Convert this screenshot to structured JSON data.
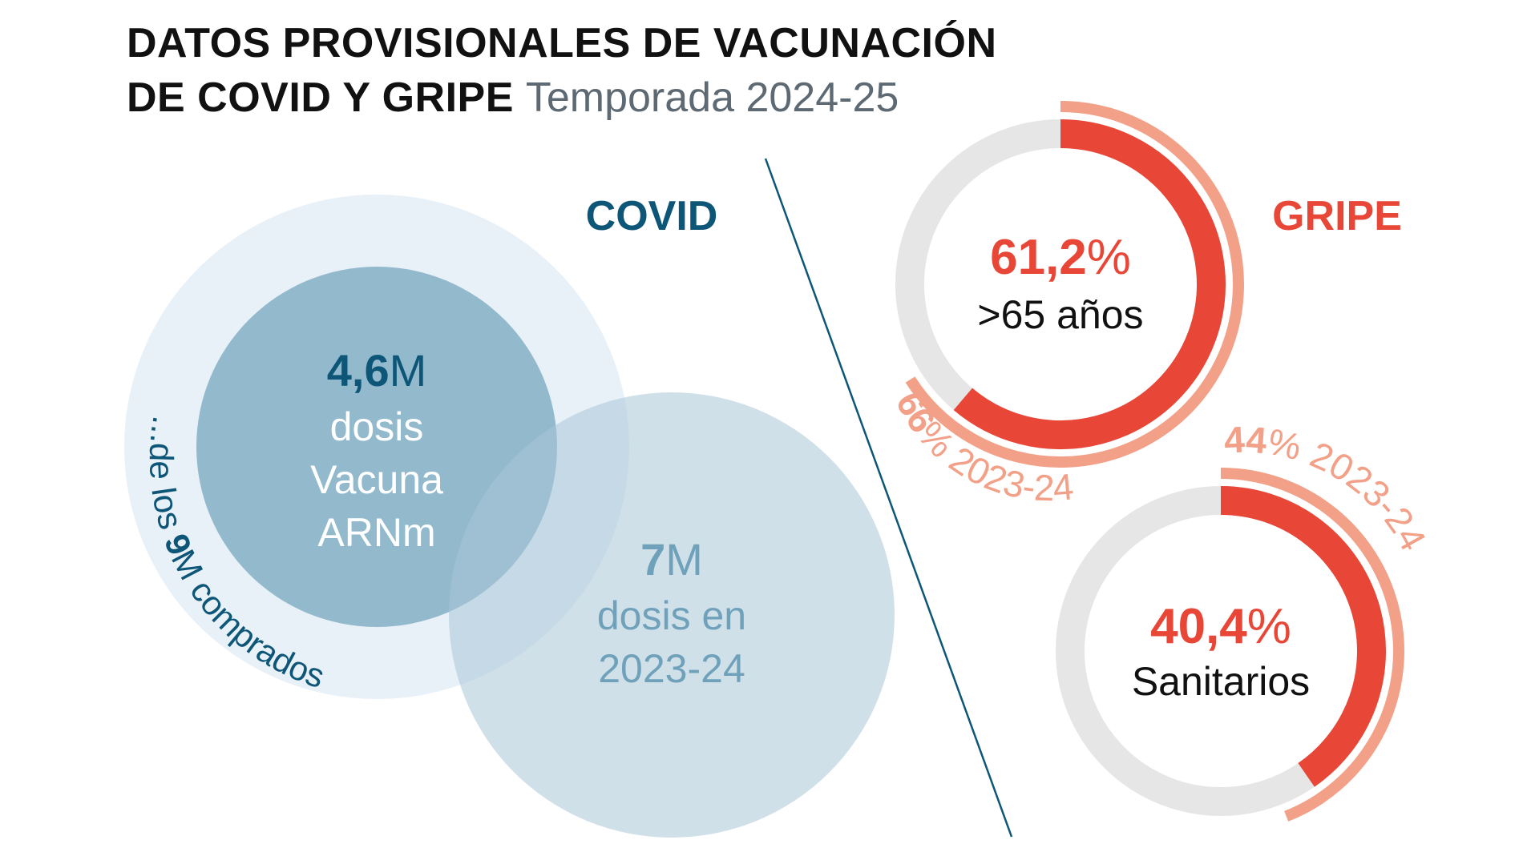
{
  "title": {
    "line1": "DATOS PROVISIONALES DE VACUNACIÓN",
    "line2": "DE COVID Y GRIPE",
    "subtitle": "Temporada 2024-25"
  },
  "colors": {
    "covid_dark": "#0e5677",
    "covid_mid": "#6fa1ba",
    "covid_light": "#a9c6d7",
    "covid_outer": "#e8f0f8",
    "gripe_red": "#e84636",
    "gripe_prev": "#f2a087",
    "ring_grey": "#e6e6e6",
    "divider": "#0e5677"
  },
  "chart_data": [
    {
      "type": "bubble",
      "section_label": "COVID",
      "bubbles": [
        {
          "key": "purchased",
          "value": 9,
          "value_text": "9",
          "unit": "M",
          "label_prefix": "...de los ",
          "label_suffix": " comprados"
        },
        {
          "key": "current",
          "value": 4.6,
          "value_text": "4,6",
          "unit": "M",
          "label_lines": [
            "dosis",
            "Vacuna",
            "ARNm"
          ]
        },
        {
          "key": "previous",
          "value": 7,
          "value_text": "7",
          "unit": "M",
          "label_lines": [
            "dosis en",
            "2023-24"
          ]
        }
      ]
    },
    {
      "type": "donut",
      "section_label": "GRIPE",
      "rings": [
        {
          "key": "mayores",
          "value": 61.2,
          "value_text": "61,2",
          "unit": "%",
          "label": ">65 años",
          "previous_value": 66,
          "previous_text": "66",
          "previous_label": "% 2023-24"
        },
        {
          "key": "sanitarios",
          "value": 40.4,
          "value_text": "40,4",
          "unit": "%",
          "label": "Sanitarios",
          "previous_value": 44,
          "previous_text": "44",
          "previous_label": "% 2023-24"
        }
      ]
    }
  ]
}
